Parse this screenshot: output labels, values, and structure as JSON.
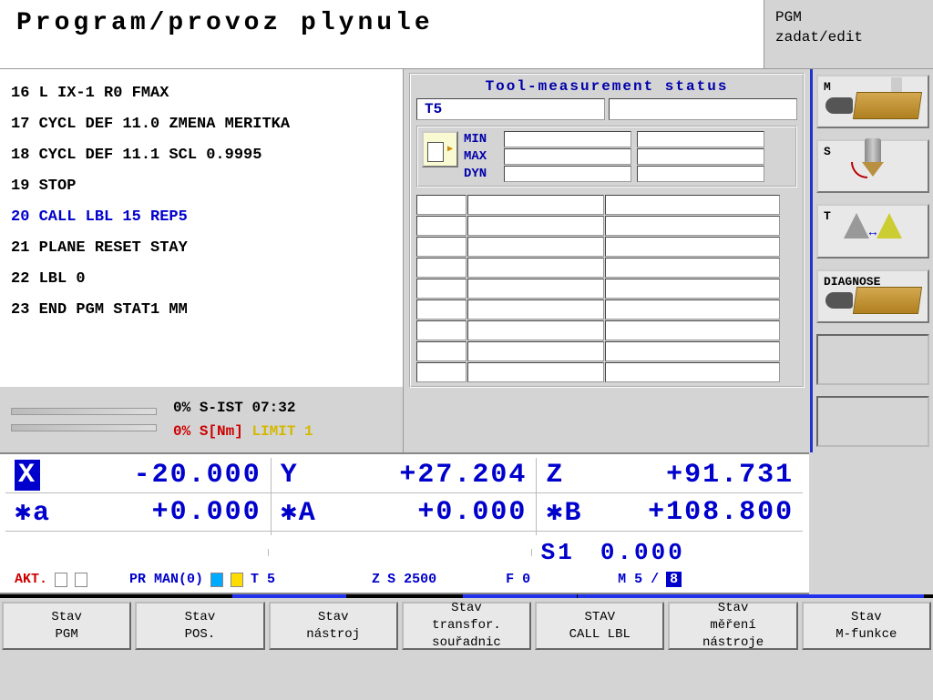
{
  "header": {
    "title": "Program/provoz plynule",
    "mode_line1": "PGM",
    "mode_line2": "zadat/edit"
  },
  "program": {
    "lines": [
      {
        "n": "16",
        "txt": "L IX-1 R0 FMAX",
        "hl": false
      },
      {
        "n": "17",
        "txt": "CYCL DEF 11.0 ZMENA MERITKA",
        "hl": false
      },
      {
        "n": "18",
        "txt": "CYCL DEF 11.1 SCL 0.9995",
        "hl": false
      },
      {
        "n": "19",
        "txt": "STOP",
        "hl": false
      },
      {
        "n": "20",
        "txt": "CALL LBL 15 REP5",
        "hl": true
      },
      {
        "n": "21",
        "txt": "PLANE RESET STAY",
        "hl": false
      },
      {
        "n": "22",
        "txt": "LBL 0",
        "hl": false
      },
      {
        "n": "23",
        "txt": "END PGM STAT1 MM",
        "hl": false
      }
    ]
  },
  "status_strip": {
    "line1_pct": "0%",
    "line1_lbl": "S-IST",
    "line1_val": "07:32",
    "line2_pct": "0%",
    "line2_lbl": "S[Nm]",
    "line2_limit": "LIMIT 1"
  },
  "tool_panel": {
    "title": "Tool-measurement status",
    "tool_field": "T5",
    "min_lbl": "MIN",
    "max_lbl": "MAX",
    "dyn_lbl": "DYN"
  },
  "side_buttons": {
    "m": "M",
    "s": "S",
    "t": "T",
    "diag": "DIAGNOSE"
  },
  "dro": {
    "row1": [
      {
        "axis": "X",
        "val": "-20.000",
        "inv": true,
        "star": false
      },
      {
        "axis": "Y",
        "val": "+27.204",
        "inv": false,
        "star": false
      },
      {
        "axis": "Z",
        "val": "+91.731",
        "inv": false,
        "star": false
      }
    ],
    "row2": [
      {
        "axis": "a",
        "val": "+0.000",
        "inv": false,
        "star": true
      },
      {
        "axis": "A",
        "val": "+0.000",
        "inv": false,
        "star": true
      },
      {
        "axis": "B",
        "val": "+108.800",
        "inv": false,
        "star": true
      }
    ],
    "spindle": {
      "lbl": "S1",
      "val": "0.000"
    }
  },
  "info_bar": {
    "akt": "AKT.",
    "pr": "PR MAN(0)",
    "t": "T  5",
    "z": "Z",
    "s": "S 2500",
    "f": "F  0",
    "m": "M 5 / ",
    "m_page": "8"
  },
  "softkeys": [
    "Stav\nPGM",
    "Stav\nPOS.",
    "Stav\nnástroj",
    "Stav\ntransfor.\nsouřadnic",
    "STAV\nCALL LBL",
    "Stav\nměření\nnástroje",
    "Stav\nM-funkce"
  ]
}
